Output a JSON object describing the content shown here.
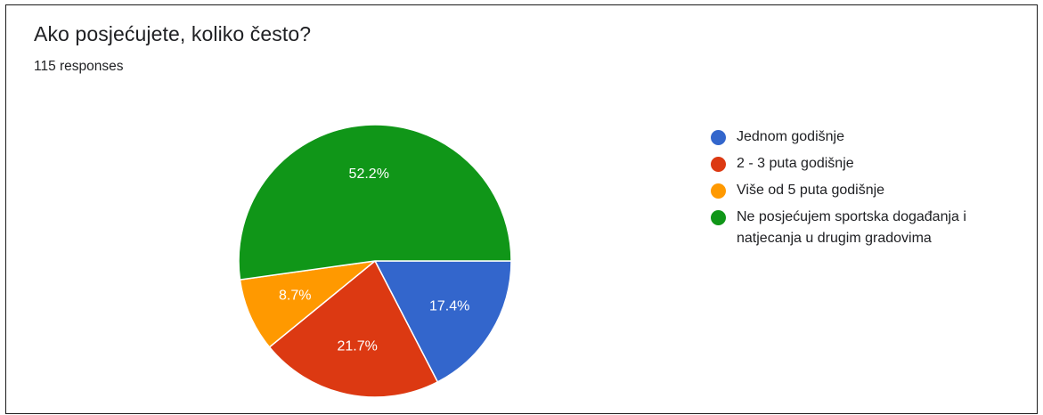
{
  "header": {
    "title": "Ako posjećujete, koliko često?",
    "responses": "115 responses"
  },
  "chart_data": {
    "type": "pie",
    "title": "Ako posjećujete, koliko često?",
    "subtitle": "115 responses",
    "legend_position": "right",
    "slices": [
      {
        "label": "Jednom godišnje",
        "value": 17.4,
        "display": "17.4%",
        "color": "#3366cc"
      },
      {
        "label": "2 - 3 puta godišnje",
        "value": 21.7,
        "display": "21.7%",
        "color": "#dc3912"
      },
      {
        "label": "Više od 5 puta godišnje",
        "value": 8.7,
        "display": "8.7%",
        "color": "#ff9900"
      },
      {
        "label": "Ne posjećujem sportska događanja i natjecanja u drugim gradovima",
        "value": 52.2,
        "display": "52.2%",
        "color": "#109618"
      }
    ]
  }
}
